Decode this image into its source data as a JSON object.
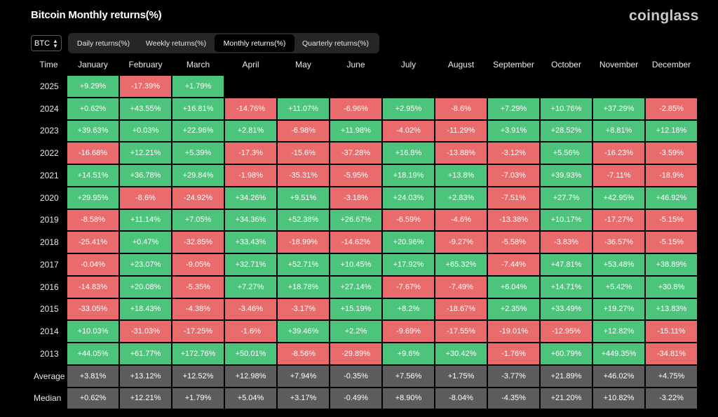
{
  "header": {
    "title": "Bitcoin Monthly returns(%)",
    "brand": "coinglass"
  },
  "asset_selector": {
    "value": "BTC"
  },
  "tabs": [
    {
      "label": "Daily returns(%)",
      "active": false
    },
    {
      "label": "Weekly returns(%)",
      "active": false
    },
    {
      "label": "Monthly returns(%)",
      "active": true
    },
    {
      "label": "Quarterly returns(%)",
      "active": false
    }
  ],
  "colors": {
    "positive": "#4dc47c",
    "negative": "#ea6b6b",
    "stat": "#5c5c5c",
    "background": "#000000"
  },
  "table": {
    "time_header": "Time",
    "months": [
      "January",
      "February",
      "March",
      "April",
      "May",
      "June",
      "July",
      "August",
      "September",
      "October",
      "November",
      "December"
    ],
    "rows": [
      {
        "label": "2025",
        "values": [
          "+9.29%",
          "-17.39%",
          "+1.79%",
          "",
          "",
          "",
          "",
          "",
          "",
          "",
          "",
          ""
        ]
      },
      {
        "label": "2024",
        "values": [
          "+0.62%",
          "+43.55%",
          "+16.81%",
          "-14.76%",
          "+11.07%",
          "-6.96%",
          "+2.95%",
          "-8.6%",
          "+7.29%",
          "+10.76%",
          "+37.29%",
          "-2.85%"
        ]
      },
      {
        "label": "2023",
        "values": [
          "+39.63%",
          "+0.03%",
          "+22.96%",
          "+2.81%",
          "-6.98%",
          "+11.98%",
          "-4.02%",
          "-11.29%",
          "+3.91%",
          "+28.52%",
          "+8.81%",
          "+12.18%"
        ]
      },
      {
        "label": "2022",
        "values": [
          "-16.68%",
          "+12.21%",
          "+5.39%",
          "-17.3%",
          "-15.6%",
          "-37.28%",
          "+16.8%",
          "-13.88%",
          "-3.12%",
          "+5.56%",
          "-16.23%",
          "-3.59%"
        ]
      },
      {
        "label": "2021",
        "values": [
          "+14.51%",
          "+36.78%",
          "+29.84%",
          "-1.98%",
          "-35.31%",
          "-5.95%",
          "+18.19%",
          "+13.8%",
          "-7.03%",
          "+39.93%",
          "-7.11%",
          "-18.9%"
        ]
      },
      {
        "label": "2020",
        "values": [
          "+29.95%",
          "-8.6%",
          "-24.92%",
          "+34.26%",
          "+9.51%",
          "-3.18%",
          "+24.03%",
          "+2.83%",
          "-7.51%",
          "+27.7%",
          "+42.95%",
          "+46.92%"
        ]
      },
      {
        "label": "2019",
        "values": [
          "-8.58%",
          "+11.14%",
          "+7.05%",
          "+34.36%",
          "+52.38%",
          "+26.67%",
          "-6.59%",
          "-4.6%",
          "-13.38%",
          "+10.17%",
          "-17.27%",
          "-5.15%"
        ]
      },
      {
        "label": "2018",
        "values": [
          "-25.41%",
          "+0.47%",
          "-32.85%",
          "+33.43%",
          "-18.99%",
          "-14.62%",
          "+20.96%",
          "-9.27%",
          "-5.58%",
          "-3.83%",
          "-36.57%",
          "-5.15%"
        ]
      },
      {
        "label": "2017",
        "values": [
          "-0.04%",
          "+23.07%",
          "-9.05%",
          "+32.71%",
          "+52.71%",
          "+10.45%",
          "+17.92%",
          "+65.32%",
          "-7.44%",
          "+47.81%",
          "+53.48%",
          "+38.89%"
        ]
      },
      {
        "label": "2016",
        "values": [
          "-14.83%",
          "+20.08%",
          "-5.35%",
          "+7.27%",
          "+18.78%",
          "+27.14%",
          "-7.67%",
          "-7.49%",
          "+6.04%",
          "+14.71%",
          "+5.42%",
          "+30.8%"
        ]
      },
      {
        "label": "2015",
        "values": [
          "-33.05%",
          "+18.43%",
          "-4.38%",
          "-3.46%",
          "-3.17%",
          "+15.19%",
          "+8.2%",
          "-18.67%",
          "+2.35%",
          "+33.49%",
          "+19.27%",
          "+13.83%"
        ]
      },
      {
        "label": "2014",
        "values": [
          "+10.03%",
          "-31.03%",
          "-17.25%",
          "-1.6%",
          "+39.46%",
          "+2.2%",
          "-9.69%",
          "-17.55%",
          "-19.01%",
          "-12.95%",
          "+12.82%",
          "-15.11%"
        ]
      },
      {
        "label": "2013",
        "values": [
          "+44.05%",
          "+61.77%",
          "+172.76%",
          "+50.01%",
          "-8.56%",
          "-29.89%",
          "+9.6%",
          "+30.42%",
          "-1.76%",
          "+60.79%",
          "+449.35%",
          "-34.81%"
        ]
      }
    ],
    "stats": [
      {
        "label": "Average",
        "values": [
          "+3.81%",
          "+13.12%",
          "+12.52%",
          "+12.98%",
          "+7.94%",
          "-0.35%",
          "+7.56%",
          "+1.75%",
          "-3.77%",
          "+21.89%",
          "+46.02%",
          "+4.75%"
        ]
      },
      {
        "label": "Median",
        "values": [
          "+0.62%",
          "+12.21%",
          "+1.79%",
          "+5.04%",
          "+3.17%",
          "-0.49%",
          "+8.90%",
          "-8.04%",
          "-4.35%",
          "+21.20%",
          "+10.82%",
          "-3.22%"
        ]
      }
    ]
  }
}
